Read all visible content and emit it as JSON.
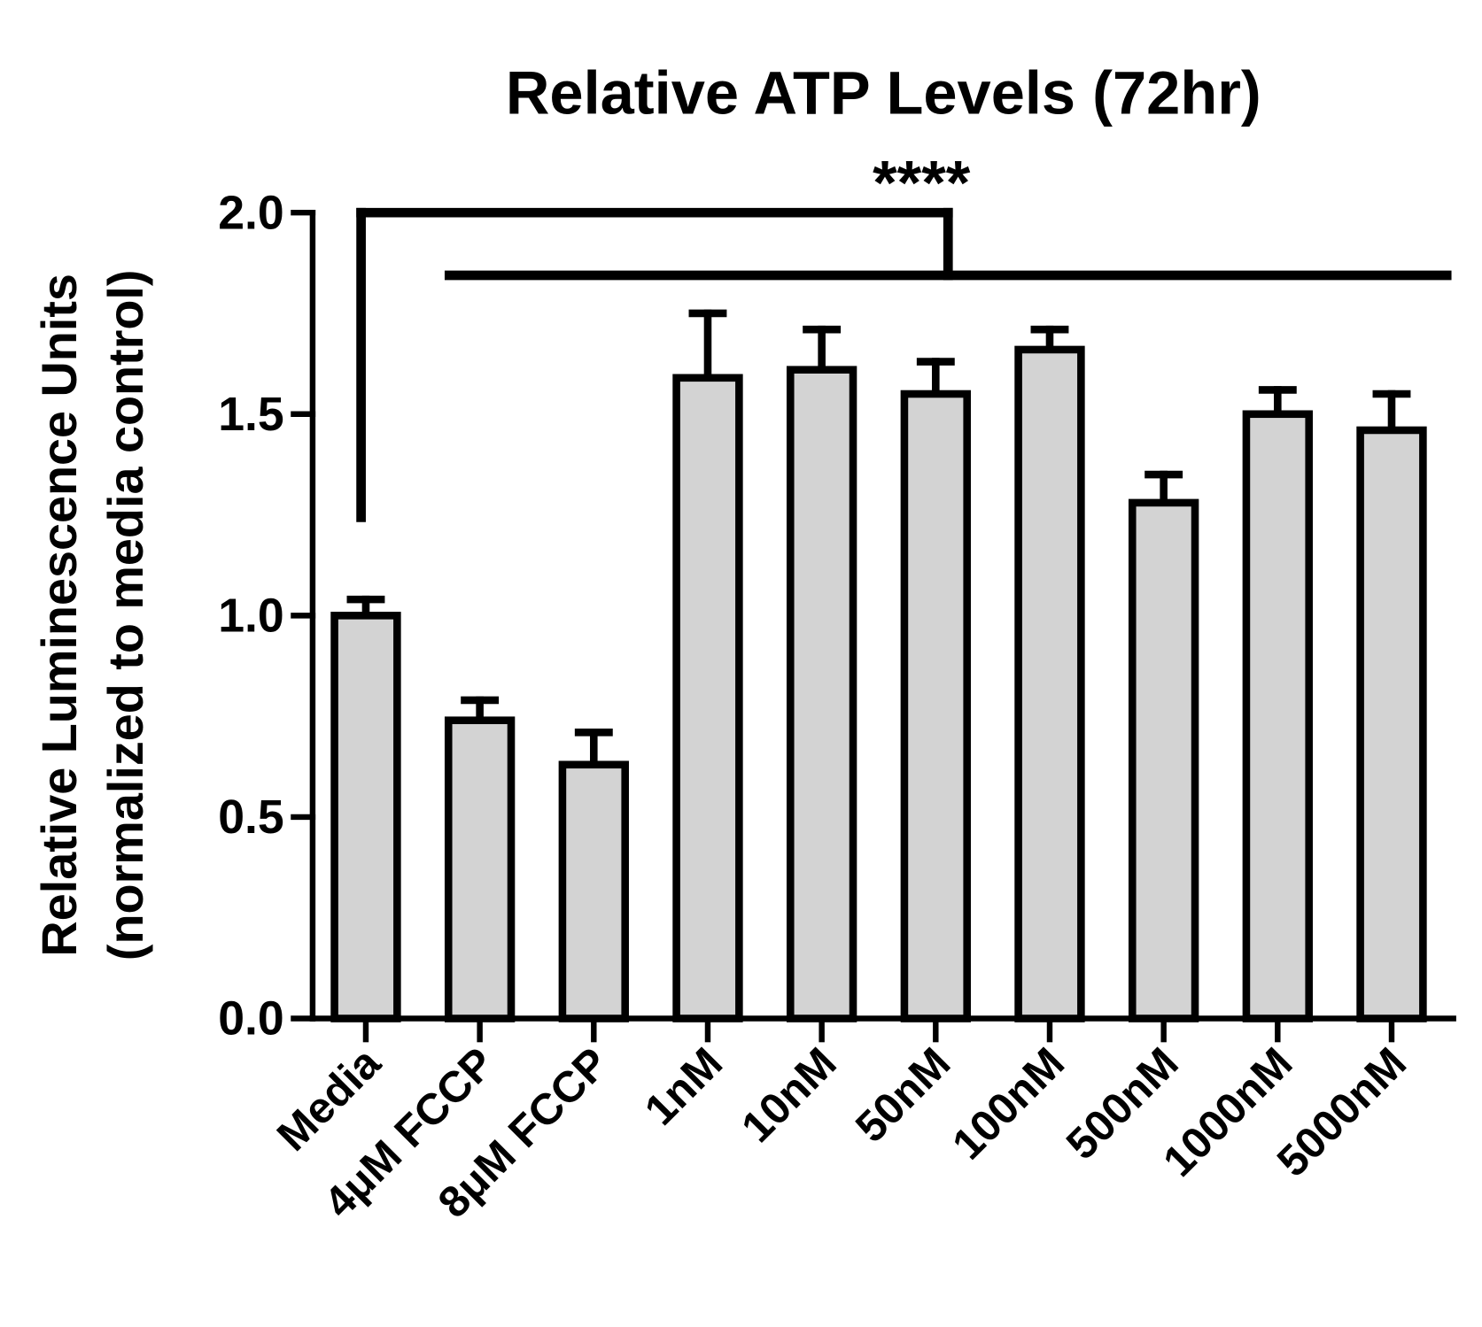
{
  "chart_data": {
    "type": "bar",
    "title": "Relative ATP Levels (72hr)",
    "ylabel_line1": "Relative Luminescence Units",
    "ylabel_line2": "(normalized to media control)",
    "xlabel": "",
    "ylim": [
      0,
      2.0
    ],
    "yticks": [
      "0.0",
      "0.5",
      "1.0",
      "1.5",
      "2.0"
    ],
    "categories": [
      "Media",
      "4μM FCCP",
      "8μM FCCP",
      "1nM",
      "10nM",
      "50nM",
      "100nM",
      "500nM",
      "1000nM",
      "5000nM"
    ],
    "values": [
      1.0,
      0.74,
      0.63,
      1.59,
      1.61,
      1.55,
      1.66,
      1.28,
      1.5,
      1.46
    ],
    "error_upper": [
      0.04,
      0.05,
      0.08,
      0.16,
      0.1,
      0.08,
      0.05,
      0.07,
      0.06,
      0.09
    ],
    "significance": {
      "label": "****",
      "from": "Media",
      "to_range": [
        "4μM FCCP",
        "5000nM"
      ]
    },
    "bar_fill": "#d3d3d3",
    "bar_stroke": "#000000",
    "grid": false,
    "legend": "none"
  }
}
